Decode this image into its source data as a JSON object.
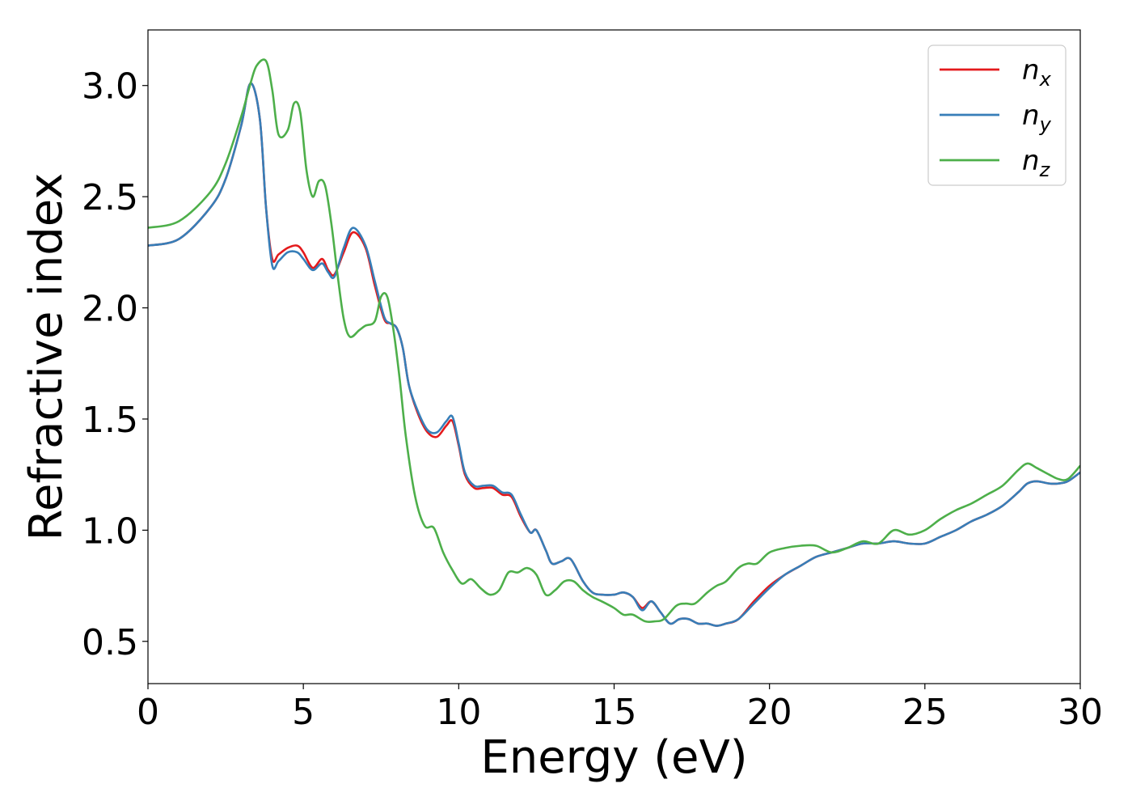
{
  "chart_data": {
    "type": "line",
    "title": "",
    "xlabel": "Energy (eV)",
    "ylabel": "Refractive index",
    "xlim": [
      0,
      30
    ],
    "ylim": [
      0.31,
      3.25
    ],
    "xticks": [
      0,
      5,
      10,
      15,
      20,
      25,
      30
    ],
    "yticks": [
      0.5,
      1.0,
      1.5,
      2.0,
      2.5,
      3.0
    ],
    "xtick_labels": [
      "0",
      "5",
      "10",
      "15",
      "20",
      "25",
      "30"
    ],
    "ytick_labels": [
      "0.5",
      "1.0",
      "1.5",
      "2.0",
      "2.5",
      "3.0"
    ],
    "grid": false,
    "legend_position": "top-right",
    "series": [
      {
        "name": "n_x",
        "label_base": "n",
        "label_sub": "x",
        "color": "#e41a1c",
        "x": [
          0,
          1,
          2,
          2.5,
          3,
          3.3,
          3.6,
          3.8,
          4.0,
          4.2,
          4.5,
          4.8,
          5.0,
          5.3,
          5.6,
          5.8,
          6.0,
          6.3,
          6.6,
          7.0,
          7.3,
          7.6,
          7.8,
          8.0,
          8.2,
          8.4,
          8.7,
          9.0,
          9.3,
          9.6,
          9.8,
          10.0,
          10.2,
          10.5,
          10.8,
          11.1,
          11.4,
          11.7,
          12.0,
          12.3,
          12.5,
          12.8,
          13.0,
          13.3,
          13.6,
          14.0,
          14.3,
          14.6,
          15.0,
          15.3,
          15.6,
          15.9,
          16.2,
          16.5,
          16.8,
          17.1,
          17.4,
          17.7,
          18.0,
          18.3,
          18.6,
          19.0,
          19.5,
          20.0,
          20.5,
          21.0,
          21.5,
          22.0,
          22.5,
          23.0,
          23.5,
          24.0,
          24.5,
          25.0,
          25.5,
          26.0,
          26.5,
          27.0,
          27.5,
          28.0,
          28.3,
          28.6,
          29.0,
          29.3,
          29.6,
          30.0
        ],
        "y": [
          2.28,
          2.31,
          2.45,
          2.58,
          2.82,
          3.01,
          2.85,
          2.45,
          2.22,
          2.24,
          2.27,
          2.28,
          2.25,
          2.18,
          2.22,
          2.17,
          2.15,
          2.25,
          2.34,
          2.27,
          2.1,
          1.95,
          1.93,
          1.91,
          1.82,
          1.65,
          1.52,
          1.44,
          1.42,
          1.47,
          1.49,
          1.38,
          1.25,
          1.19,
          1.19,
          1.19,
          1.16,
          1.15,
          1.06,
          0.99,
          1.0,
          0.91,
          0.85,
          0.86,
          0.87,
          0.77,
          0.72,
          0.71,
          0.71,
          0.72,
          0.7,
          0.65,
          0.68,
          0.63,
          0.58,
          0.6,
          0.6,
          0.58,
          0.58,
          0.57,
          0.58,
          0.6,
          0.68,
          0.75,
          0.8,
          0.84,
          0.88,
          0.9,
          0.92,
          0.94,
          0.94,
          0.95,
          0.94,
          0.94,
          0.97,
          1.0,
          1.04,
          1.07,
          1.11,
          1.17,
          1.21,
          1.22,
          1.21,
          1.21,
          1.22,
          1.26
        ]
      },
      {
        "name": "n_y",
        "label_base": "n",
        "label_sub": "y",
        "color": "#377eb8",
        "x": [
          0,
          1,
          2,
          2.5,
          3,
          3.3,
          3.6,
          3.8,
          4.0,
          4.2,
          4.5,
          4.8,
          5.0,
          5.3,
          5.6,
          5.8,
          6.0,
          6.3,
          6.6,
          7.0,
          7.3,
          7.6,
          7.8,
          8.0,
          8.2,
          8.4,
          8.7,
          9.0,
          9.3,
          9.6,
          9.8,
          10.0,
          10.2,
          10.5,
          10.8,
          11.1,
          11.4,
          11.7,
          12.0,
          12.3,
          12.5,
          12.8,
          13.0,
          13.3,
          13.6,
          14.0,
          14.3,
          14.6,
          15.0,
          15.3,
          15.6,
          15.9,
          16.2,
          16.5,
          16.8,
          17.1,
          17.4,
          17.7,
          18.0,
          18.3,
          18.6,
          19.0,
          19.5,
          20.0,
          20.5,
          21.0,
          21.5,
          22.0,
          22.5,
          23.0,
          23.5,
          24.0,
          24.5,
          25.0,
          25.5,
          26.0,
          26.5,
          27.0,
          27.5,
          28.0,
          28.3,
          28.6,
          29.0,
          29.3,
          29.6,
          30.0
        ],
        "y": [
          2.28,
          2.31,
          2.45,
          2.58,
          2.82,
          3.01,
          2.85,
          2.45,
          2.19,
          2.21,
          2.25,
          2.25,
          2.22,
          2.17,
          2.2,
          2.16,
          2.14,
          2.27,
          2.36,
          2.28,
          2.12,
          1.96,
          1.93,
          1.91,
          1.82,
          1.65,
          1.53,
          1.45,
          1.44,
          1.49,
          1.51,
          1.39,
          1.26,
          1.2,
          1.2,
          1.2,
          1.17,
          1.16,
          1.07,
          0.99,
          1.0,
          0.91,
          0.85,
          0.86,
          0.87,
          0.77,
          0.72,
          0.71,
          0.71,
          0.72,
          0.7,
          0.64,
          0.68,
          0.63,
          0.58,
          0.6,
          0.6,
          0.58,
          0.58,
          0.57,
          0.58,
          0.6,
          0.67,
          0.74,
          0.8,
          0.84,
          0.88,
          0.9,
          0.92,
          0.94,
          0.94,
          0.95,
          0.94,
          0.94,
          0.97,
          1.0,
          1.04,
          1.07,
          1.11,
          1.17,
          1.21,
          1.22,
          1.21,
          1.21,
          1.22,
          1.26
        ]
      },
      {
        "name": "n_z",
        "label_base": "n",
        "label_sub": "z",
        "color": "#4daf4a",
        "x": [
          0,
          1,
          2,
          2.5,
          3,
          3.3,
          3.5,
          3.8,
          4.0,
          4.2,
          4.5,
          4.7,
          4.9,
          5.1,
          5.3,
          5.5,
          5.7,
          5.9,
          6.1,
          6.3,
          6.5,
          6.8,
          7.0,
          7.3,
          7.5,
          7.7,
          7.9,
          8.1,
          8.3,
          8.6,
          8.9,
          9.2,
          9.5,
          9.8,
          10.1,
          10.4,
          10.7,
          11.0,
          11.3,
          11.6,
          11.9,
          12.2,
          12.5,
          12.8,
          13.1,
          13.4,
          13.7,
          14.0,
          14.3,
          14.6,
          15.0,
          15.3,
          15.6,
          16.0,
          16.3,
          16.6,
          17.0,
          17.3,
          17.6,
          18.0,
          18.3,
          18.6,
          19.0,
          19.3,
          19.6,
          20.0,
          20.5,
          21.0,
          21.5,
          22.0,
          22.5,
          23.0,
          23.5,
          24.0,
          24.5,
          25.0,
          25.5,
          26.0,
          26.5,
          27.0,
          27.5,
          28.0,
          28.3,
          28.6,
          29.0,
          29.3,
          29.6,
          30.0
        ],
        "y": [
          2.36,
          2.39,
          2.52,
          2.65,
          2.86,
          3.01,
          3.09,
          3.11,
          2.98,
          2.78,
          2.8,
          2.92,
          2.88,
          2.62,
          2.5,
          2.57,
          2.55,
          2.38,
          2.15,
          1.95,
          1.87,
          1.9,
          1.92,
          1.94,
          2.05,
          2.05,
          1.9,
          1.68,
          1.42,
          1.15,
          1.02,
          1.01,
          0.9,
          0.82,
          0.76,
          0.78,
          0.74,
          0.71,
          0.73,
          0.81,
          0.81,
          0.83,
          0.8,
          0.71,
          0.73,
          0.77,
          0.77,
          0.73,
          0.7,
          0.68,
          0.65,
          0.62,
          0.62,
          0.59,
          0.59,
          0.6,
          0.66,
          0.67,
          0.67,
          0.72,
          0.75,
          0.77,
          0.83,
          0.85,
          0.85,
          0.9,
          0.92,
          0.93,
          0.93,
          0.9,
          0.92,
          0.95,
          0.94,
          1.0,
          0.98,
          1.0,
          1.05,
          1.09,
          1.12,
          1.16,
          1.2,
          1.27,
          1.3,
          1.28,
          1.25,
          1.23,
          1.23,
          1.29
        ]
      }
    ]
  }
}
